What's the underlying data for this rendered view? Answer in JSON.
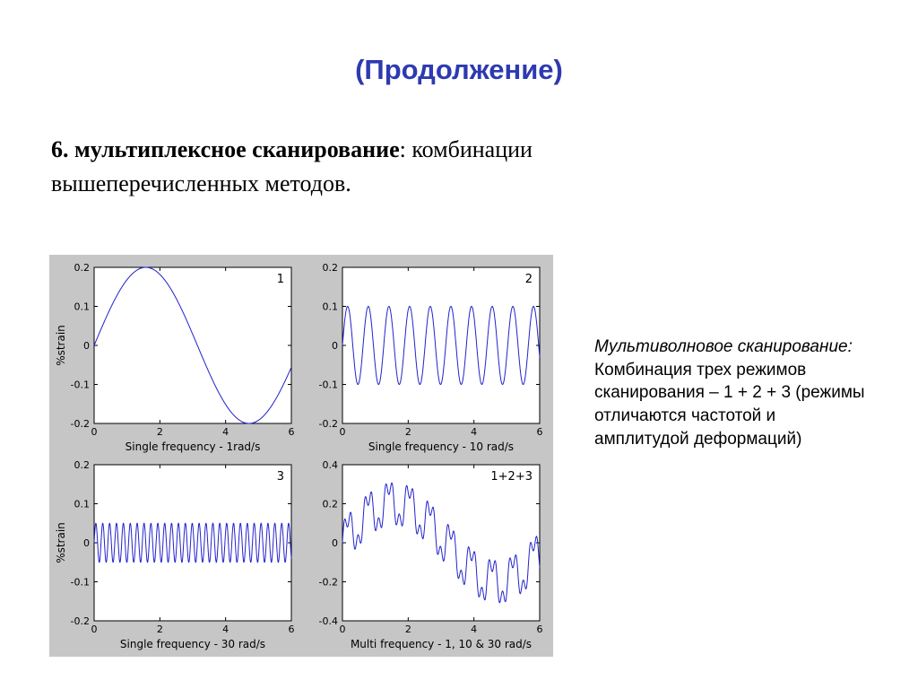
{
  "title": "(Продолжение)",
  "title_color": "#2d3ab0",
  "paragraph": {
    "bold": "6. мультиплексное сканирование",
    "rest": ": комбинации вышеперечисленных методов."
  },
  "annotation": {
    "title": "Мультиволновое сканирование:",
    "body": "Комбинация трех режимов сканирования –  1 + 2 + 3 (режимы отличаются частотой и амплитудой деформаций)"
  },
  "chart_data": {
    "type": "line",
    "style": {
      "plot_bg": "#ffffff",
      "axis_color": "#000000",
      "curve_color": "#2222cc",
      "panel_bg": "#c6c6c6",
      "grid": "off",
      "legend": "none"
    },
    "charts": [
      {
        "type": "line",
        "label": "1",
        "xlabel": "Single frequency - 1rad/s",
        "ylabel": "%strain",
        "xlim": [
          0,
          6
        ],
        "ylim": [
          -0.2,
          0.2
        ],
        "xticks": [
          "0",
          "2",
          "4",
          "6"
        ],
        "yticks": [
          "-0.2",
          "-0.1",
          "0",
          "0.1",
          "0.2"
        ],
        "components": [
          {
            "freq": 1,
            "amp": 0.2
          }
        ]
      },
      {
        "type": "line",
        "label": "2",
        "xlabel": "Single frequency - 10 rad/s",
        "ylabel": "",
        "xlim": [
          0,
          6
        ],
        "ylim": [
          -0.2,
          0.2
        ],
        "xticks": [
          "0",
          "2",
          "4",
          "6"
        ],
        "yticks": [
          "-0.2",
          "-0.1",
          "0",
          "0.1",
          "0.2"
        ],
        "components": [
          {
            "freq": 10,
            "amp": 0.1
          }
        ]
      },
      {
        "type": "line",
        "label": "3",
        "xlabel": "Single frequency - 30 rad/s",
        "ylabel": "%strain",
        "xlim": [
          0,
          6
        ],
        "ylim": [
          -0.2,
          0.2
        ],
        "xticks": [
          "0",
          "2",
          "4",
          "6"
        ],
        "yticks": [
          "-0.2",
          "-0.1",
          "0",
          "0.1",
          "0.2"
        ],
        "components": [
          {
            "freq": 30,
            "amp": 0.05
          }
        ]
      },
      {
        "type": "line",
        "label": "1+2+3",
        "xlabel": "Multi frequency - 1, 10 & 30 rad/s",
        "ylabel": "",
        "xlim": [
          0,
          6
        ],
        "ylim": [
          -0.4,
          0.4
        ],
        "xticks": [
          "0",
          "2",
          "4",
          "6"
        ],
        "yticks": [
          "-0.4",
          "-0.2",
          "0",
          "0.2",
          "0.4"
        ],
        "components": [
          {
            "freq": 1,
            "amp": 0.2
          },
          {
            "freq": 10,
            "amp": 0.1
          },
          {
            "freq": 30,
            "amp": 0.05
          }
        ]
      }
    ]
  }
}
